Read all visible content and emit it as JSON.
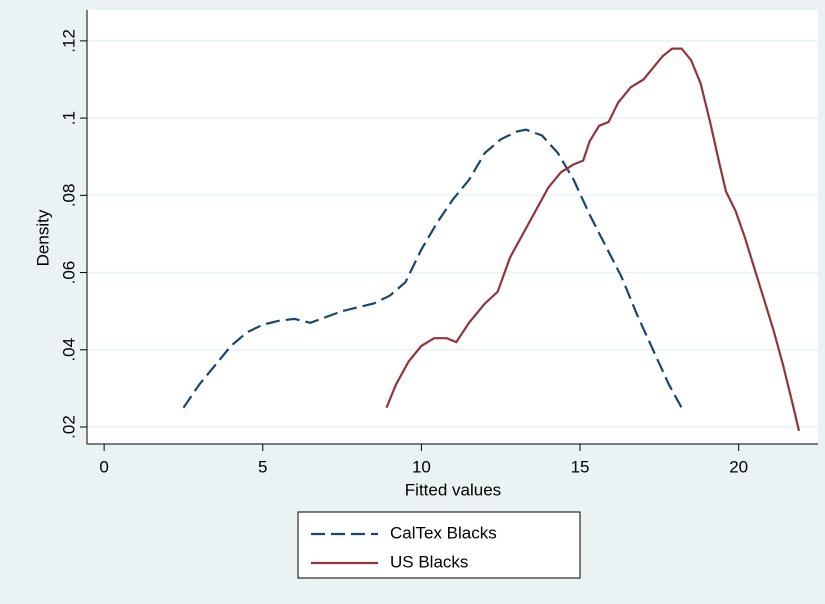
{
  "chart_data": {
    "type": "line",
    "x_label": "Fitted values",
    "y_label": "Density",
    "xlim": [
      -0.54,
      22.5
    ],
    "xticks": [
      0,
      5,
      10,
      15,
      20
    ],
    "ylim": [
      0.0156,
      0.128
    ],
    "yticks": [
      {
        "value": 0.02,
        "label": ".02"
      },
      {
        "value": 0.04,
        "label": ".04"
      },
      {
        "value": 0.06,
        "label": ".06"
      },
      {
        "value": 0.08,
        "label": ".08"
      },
      {
        "value": 0.1,
        "label": ".1"
      },
      {
        "value": 0.12,
        "label": ".12"
      }
    ],
    "grid": true,
    "series": [
      {
        "name": "CalTex Blacks",
        "color": "#1a476f",
        "dash": true,
        "x": [
          2.5,
          3,
          3.5,
          4,
          4.5,
          5,
          5.5,
          6,
          6.5,
          7,
          7.5,
          8,
          8.5,
          9,
          9.5,
          10,
          10.5,
          11,
          11.5,
          12,
          12.5,
          13,
          13.3,
          13.8,
          14.3,
          14.8,
          15.3,
          15.8,
          16.3,
          16.8,
          17.3,
          17.8,
          18.2
        ],
        "values": [
          0.025,
          0.031,
          0.036,
          0.041,
          0.0445,
          0.0465,
          0.0475,
          0.048,
          0.047,
          0.0485,
          0.05,
          0.051,
          0.052,
          0.054,
          0.0575,
          0.066,
          0.073,
          0.079,
          0.084,
          0.091,
          0.0945,
          0.0965,
          0.097,
          0.0955,
          0.091,
          0.084,
          0.075,
          0.067,
          0.059,
          0.049,
          0.04,
          0.031,
          0.025
        ]
      },
      {
        "name": "US Blacks",
        "color": "#90353b",
        "dash": false,
        "x": [
          8.9,
          9.2,
          9.6,
          10,
          10.4,
          10.8,
          11.1,
          11.5,
          12,
          12.4,
          12.8,
          13.2,
          13.6,
          14,
          14.4,
          14.8,
          15.1,
          15.3,
          15.6,
          15.9,
          16.2,
          16.6,
          17,
          17.3,
          17.6,
          17.9,
          18.2,
          18.5,
          18.8,
          19.1,
          19.4,
          19.6,
          19.9,
          20.2,
          20.5,
          20.8,
          21.1,
          21.4,
          21.7,
          21.9
        ],
        "values": [
          0.025,
          0.031,
          0.037,
          0.041,
          0.043,
          0.043,
          0.042,
          0.047,
          0.052,
          0.055,
          0.064,
          0.07,
          0.076,
          0.082,
          0.086,
          0.088,
          0.089,
          0.094,
          0.098,
          0.099,
          0.104,
          0.108,
          0.11,
          0.113,
          0.116,
          0.118,
          0.118,
          0.115,
          0.109,
          0.099,
          0.088,
          0.081,
          0.076,
          0.069,
          0.061,
          0.053,
          0.045,
          0.036,
          0.026,
          0.019
        ]
      }
    ]
  }
}
